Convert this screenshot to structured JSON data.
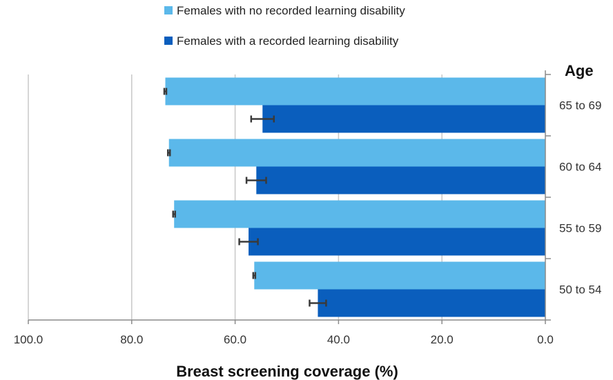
{
  "chart_data": {
    "type": "bar",
    "orientation": "horizontal",
    "x_axis_reversed": true,
    "categories": [
      "65 to 69",
      "60 to 64",
      "55 to 59",
      "50 to 54"
    ],
    "category_axis_title": "Age",
    "xlabel": "Breast screening coverage (%)",
    "xlim": [
      0,
      100
    ],
    "x_ticks": [
      "100.0",
      "80.0",
      "60.0",
      "40.0",
      "20.0",
      "0.0"
    ],
    "x_tick_values": [
      100,
      80,
      60,
      40,
      20,
      0
    ],
    "grid": true,
    "legend_position": "top",
    "series": [
      {
        "name": "Females with no recorded learning disability",
        "color": "#5bb8ea",
        "values": [
          73.5,
          72.8,
          71.8,
          56.3
        ],
        "error": [
          0.2,
          0.2,
          0.2,
          0.2
        ]
      },
      {
        "name": "Females with a recorded learning disability",
        "color": "#0a5ebd",
        "values": [
          54.7,
          55.9,
          57.4,
          44.0
        ],
        "error": [
          2.2,
          1.9,
          1.8,
          1.6
        ]
      }
    ]
  }
}
